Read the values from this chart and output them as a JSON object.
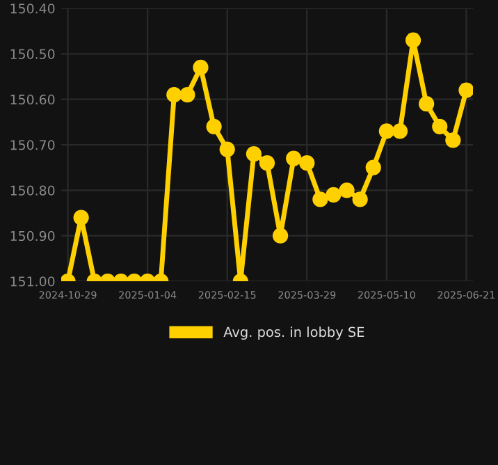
{
  "chart_data": {
    "type": "line",
    "categories": [
      "2024-10-29",
      null,
      null,
      null,
      null,
      null,
      "2025-01-04",
      null,
      null,
      null,
      null,
      null,
      "2025-02-15",
      null,
      null,
      null,
      null,
      null,
      "2025-03-29",
      null,
      null,
      null,
      null,
      null,
      "2025-05-10",
      null,
      null,
      null,
      null,
      null,
      "2025-06-21"
    ],
    "series": [
      {
        "name": "Avg. pos. in lobby SE",
        "color": "#ffd000",
        "values": [
          151.0,
          150.86,
          151.0,
          151.0,
          151.0,
          151.0,
          151.0,
          151.0,
          150.59,
          150.59,
          150.53,
          150.66,
          150.71,
          151.0,
          150.72,
          150.74,
          150.9,
          150.73,
          150.74,
          150.82,
          150.81,
          150.8,
          150.82,
          150.75,
          150.67,
          150.67,
          150.47,
          150.61,
          150.66,
          150.69,
          150.58
        ]
      }
    ],
    "ylim": [
      151.0,
      150.4
    ],
    "yticks": [
      {
        "value": 151.0,
        "label": "151.00"
      },
      {
        "value": 150.9,
        "label": "150.90"
      },
      {
        "value": 150.8,
        "label": "150.80"
      },
      {
        "value": 150.7,
        "label": "150.70"
      },
      {
        "value": 150.6,
        "label": "150.60"
      },
      {
        "value": 150.5,
        "label": "150.50"
      },
      {
        "value": 150.4,
        "label": "150.40"
      }
    ],
    "grid": true,
    "legend": "bottom",
    "marker": "circle",
    "line_style": "solid"
  }
}
